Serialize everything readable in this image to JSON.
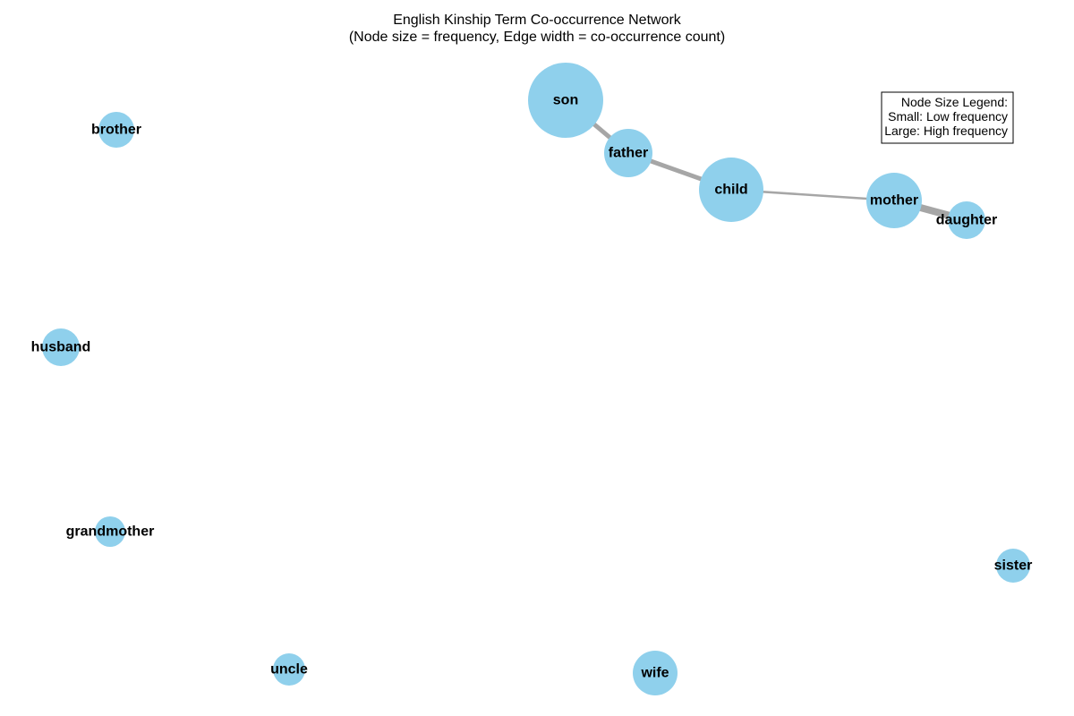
{
  "title": {
    "line1": "English Kinship Term Co-occurrence Network",
    "line2": "(Node size = frequency, Edge width = co-occurrence count)"
  },
  "legend": {
    "heading": "Node Size Legend:",
    "small": "Small: Low frequency",
    "large": "Large: High frequency"
  },
  "colors": {
    "node": "#8fd0ec",
    "edge": "#a6a6a6"
  },
  "nodes": [
    {
      "id": "son",
      "label": "son"
    },
    {
      "id": "father",
      "label": "father"
    },
    {
      "id": "child",
      "label": "child"
    },
    {
      "id": "mother",
      "label": "mother"
    },
    {
      "id": "daughter",
      "label": "daughter"
    },
    {
      "id": "brother",
      "label": "brother"
    },
    {
      "id": "husband",
      "label": "husband"
    },
    {
      "id": "grandmother",
      "label": "grandmother"
    },
    {
      "id": "uncle",
      "label": "uncle"
    },
    {
      "id": "wife",
      "label": "wife"
    },
    {
      "id": "sister",
      "label": "sister"
    }
  ],
  "edges": [
    {
      "source": "son",
      "target": "father"
    },
    {
      "source": "father",
      "target": "child"
    },
    {
      "source": "child",
      "target": "mother"
    },
    {
      "source": "mother",
      "target": "daughter"
    }
  ]
}
